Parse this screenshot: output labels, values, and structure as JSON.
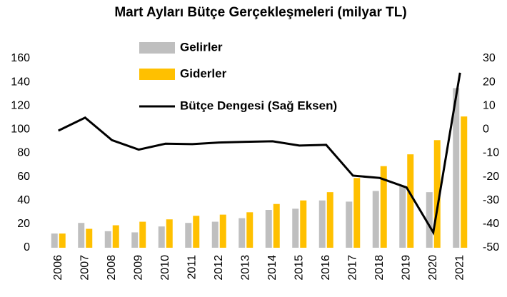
{
  "chart_data": {
    "type": "bar_line",
    "title": "Mart Ayları Bütçe Gerçekleşmeleri (milyar TL)",
    "categories": [
      "2006",
      "2007",
      "2008",
      "2009",
      "2010",
      "2011",
      "2012",
      "2013",
      "2014",
      "2015",
      "2016",
      "2017",
      "2018",
      "2019",
      "2020",
      "2021"
    ],
    "series": [
      {
        "name": "Gelirler",
        "color": "#bfbfbf",
        "type": "bar",
        "axis": "y",
        "values": [
          12,
          21,
          14,
          13,
          18,
          21,
          22,
          25,
          32,
          33,
          40,
          39,
          48,
          52,
          47,
          135
        ]
      },
      {
        "name": "Giderler",
        "color": "#ffc000",
        "type": "bar",
        "axis": "y",
        "values": [
          12,
          16,
          19,
          22,
          24,
          27,
          28,
          30,
          37,
          40,
          47,
          59,
          69,
          79,
          91,
          111
        ]
      },
      {
        "name": "Bütçe Dengesi (Sağ Eksen)",
        "color": "#000000",
        "type": "line",
        "axis": "y2",
        "values": [
          -0.5,
          5,
          -4.5,
          -8.5,
          -6,
          -6.2,
          -5.5,
          -5.2,
          -5,
          -6.8,
          -6.5,
          -19.5,
          -20.5,
          -24.5,
          -43.5,
          24
        ]
      }
    ],
    "ylim": [
      0,
      160
    ],
    "yticks": [
      0,
      20,
      40,
      60,
      80,
      100,
      120,
      140,
      160
    ],
    "y2lim": [
      -50,
      30
    ],
    "y2ticks": [
      -50,
      -40,
      -30,
      -20,
      -10,
      0,
      10,
      20,
      30
    ]
  }
}
